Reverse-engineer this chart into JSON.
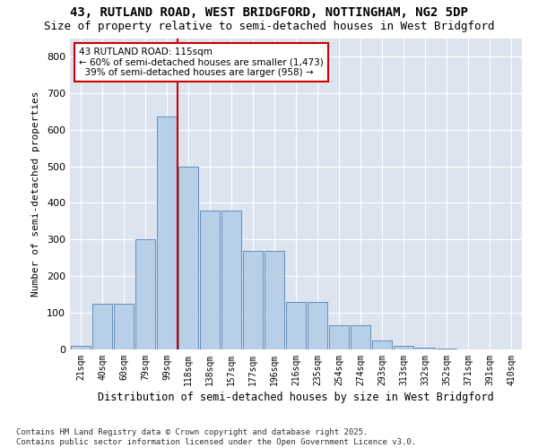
{
  "title": "43, RUTLAND ROAD, WEST BRIDGFORD, NOTTINGHAM, NG2 5DP",
  "subtitle": "Size of property relative to semi-detached houses in West Bridgford",
  "xlabel": "Distribution of semi-detached houses by size in West Bridgford",
  "ylabel": "Number of semi-detached properties",
  "categories": [
    "21sqm",
    "40sqm",
    "60sqm",
    "79sqm",
    "99sqm",
    "118sqm",
    "138sqm",
    "157sqm",
    "177sqm",
    "196sqm",
    "216sqm",
    "235sqm",
    "254sqm",
    "274sqm",
    "293sqm",
    "313sqm",
    "332sqm",
    "352sqm",
    "371sqm",
    "391sqm",
    "410sqm"
  ],
  "values": [
    10,
    125,
    125,
    300,
    635,
    500,
    380,
    380,
    270,
    270,
    130,
    130,
    65,
    65,
    25,
    10,
    5,
    2,
    1,
    0,
    0
  ],
  "bar_color": "#b8cfe8",
  "bar_edge_color": "#5580b0",
  "vline_color": "#cc0000",
  "vline_x_idx": 5,
  "annotation_text": "43 RUTLAND ROAD: 115sqm\n← 60% of semi-detached houses are smaller (1,473)\n  39% of semi-detached houses are larger (958) →",
  "annotation_box_color": "#ffffff",
  "annotation_box_edge": "#cc0000",
  "ylim": [
    0,
    850
  ],
  "yticks": [
    0,
    100,
    200,
    300,
    400,
    500,
    600,
    700,
    800
  ],
  "bg_color": "#dce4f0",
  "title_fontsize": 10,
  "subtitle_fontsize": 9,
  "footnote": "Contains HM Land Registry data © Crown copyright and database right 2025.\nContains public sector information licensed under the Open Government Licence v3.0.",
  "footnote_fontsize": 6.5
}
